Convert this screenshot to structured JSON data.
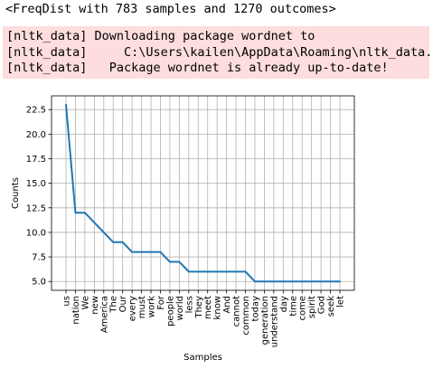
{
  "output": {
    "repr": "<FreqDist with 783 samples and 1270 outcomes>"
  },
  "stderr_lines": [
    "[nltk_data] Downloading package wordnet to",
    "[nltk_data]     C:\\Users\\kailen\\AppData\\Roaming\\nltk_data...",
    "[nltk_data]   Package wordnet is already up-to-date!"
  ],
  "colors": {
    "stderr_bg": "#fddddd",
    "line": "#1f77b4",
    "grid": "#b0b0b0"
  },
  "chart_data": {
    "type": "line",
    "title": "",
    "xlabel": "Samples",
    "ylabel": "Counts",
    "ylim": [
      4.1,
      23.9
    ],
    "yticks": [
      "5.0",
      "7.5",
      "10.0",
      "12.5",
      "15.0",
      "17.5",
      "20.0",
      "22.5"
    ],
    "yticks_values": [
      5.0,
      7.5,
      10.0,
      12.5,
      15.0,
      17.5,
      20.0,
      22.5
    ],
    "grid": true,
    "categories": [
      "us",
      "nation",
      "We",
      "new",
      "America",
      "The",
      "Our",
      "every",
      "must",
      "work",
      "For",
      "people",
      "world",
      "less",
      "They",
      "meet",
      "know",
      "And",
      "cannot",
      "common",
      "today",
      "generation",
      "understand",
      "day",
      "time",
      "come",
      "spirit",
      "God",
      "seek",
      "let"
    ],
    "values": [
      23,
      12,
      12,
      11,
      10,
      9,
      9,
      8,
      8,
      8,
      8,
      7,
      7,
      6,
      6,
      6,
      6,
      6,
      6,
      6,
      5,
      5,
      5,
      5,
      5,
      5,
      5,
      5,
      5,
      5
    ]
  }
}
